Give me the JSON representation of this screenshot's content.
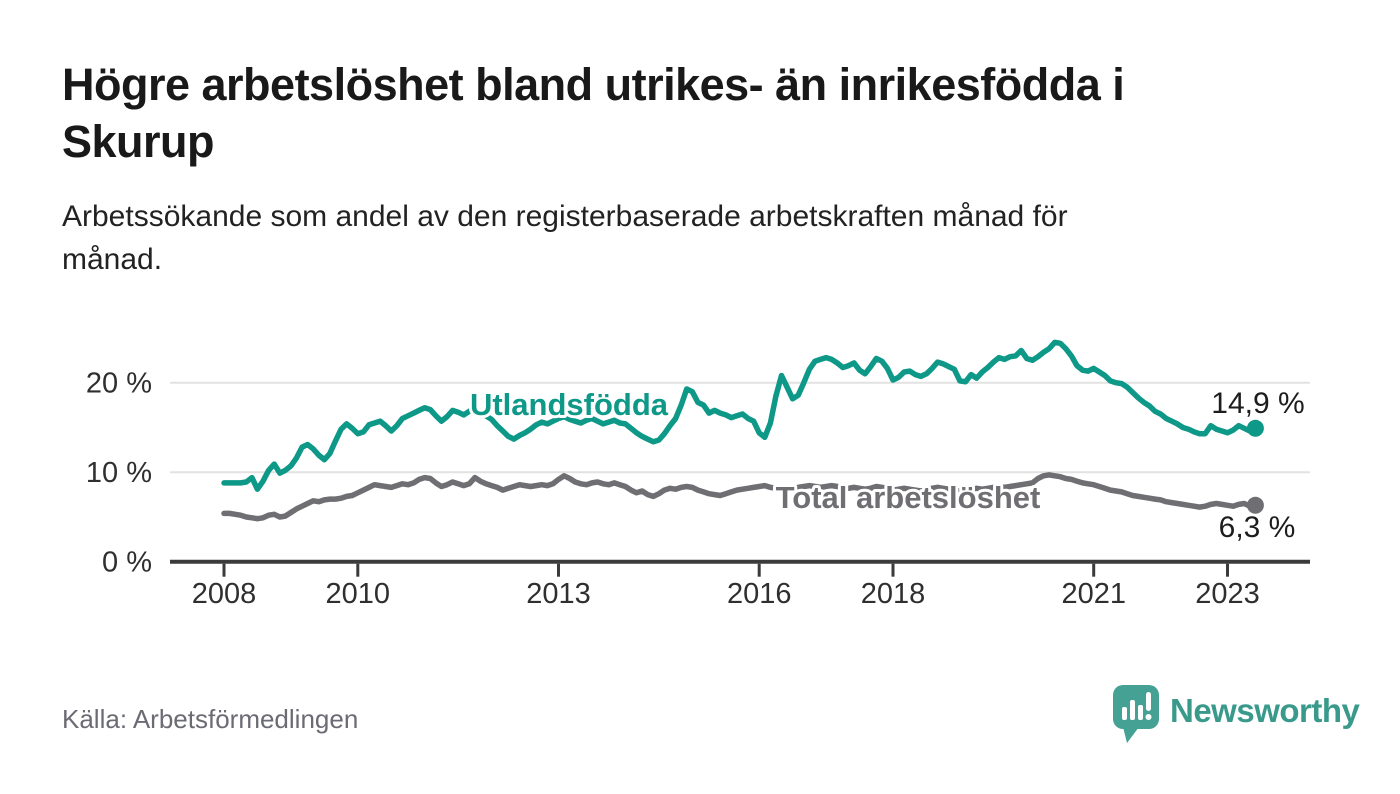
{
  "header": {
    "title": "Högre arbetslöshet bland utrikes- än inrikesfödda i Skurup",
    "subtitle": "Arbetssökande som andel av den registerbaserade arbetskraften månad för månad."
  },
  "chart_data": {
    "type": "line",
    "title": "Högre arbetslöshet bland utrikes- än inrikesfödda i Skurup",
    "x_start": "2008-01",
    "x_end": "2023-06",
    "frequency": "monthly",
    "ylim": [
      0,
      25
    ],
    "grid": "horizontal",
    "legend_position": "inline-labels",
    "y_ticks": [
      {
        "value": 0,
        "label": "0 %"
      },
      {
        "value": 10,
        "label": "10 %"
      },
      {
        "value": 20,
        "label": "20 %"
      }
    ],
    "x_ticks": [
      {
        "year": 2008,
        "label": "2008"
      },
      {
        "year": 2010,
        "label": "2010"
      },
      {
        "year": 2013,
        "label": "2013"
      },
      {
        "year": 2016,
        "label": "2016"
      },
      {
        "year": 2018,
        "label": "2018"
      },
      {
        "year": 2021,
        "label": "2021"
      },
      {
        "year": 2023,
        "label": "2023"
      }
    ],
    "series": [
      {
        "name": "Utlandsfödda",
        "color": "#0d9888",
        "end_label": "14,9 %",
        "end_value": 14.9,
        "values": [
          8.8,
          8.8,
          8.8,
          8.8,
          8.9,
          9.4,
          8.1,
          9.0,
          10.2,
          10.9,
          9.9,
          10.2,
          10.7,
          11.6,
          12.8,
          13.1,
          12.6,
          11.9,
          11.4,
          12.1,
          13.5,
          14.8,
          15.4,
          14.9,
          14.3,
          14.5,
          15.3,
          15.5,
          15.7,
          15.2,
          14.6,
          15.2,
          16.0,
          16.3,
          16.6,
          16.9,
          17.2,
          17.0,
          16.3,
          15.7,
          16.2,
          16.9,
          16.7,
          16.4,
          16.8,
          17.1,
          16.6,
          16.3,
          15.9,
          15.2,
          14.6,
          14.0,
          13.7,
          14.1,
          14.4,
          14.8,
          15.3,
          15.6,
          15.4,
          15.7,
          16.0,
          16.2,
          15.9,
          15.7,
          15.5,
          15.8,
          16.0,
          15.7,
          15.4,
          15.6,
          15.8,
          15.5,
          15.4,
          14.9,
          14.4,
          14.0,
          13.7,
          13.4,
          13.6,
          14.3,
          15.2,
          16.0,
          17.5,
          19.3,
          19.0,
          17.8,
          17.5,
          16.6,
          16.9,
          16.6,
          16.4,
          16.1,
          16.3,
          16.5,
          16.0,
          15.7,
          14.4,
          13.9,
          15.5,
          18.5,
          20.8,
          19.5,
          18.2,
          18.6,
          20.0,
          21.5,
          22.4,
          22.6,
          22.8,
          22.6,
          22.2,
          21.7,
          21.9,
          22.2,
          21.4,
          21.0,
          21.8,
          22.7,
          22.4,
          21.6,
          20.3,
          20.6,
          21.2,
          21.3,
          20.9,
          20.7,
          21.0,
          21.6,
          22.3,
          22.1,
          21.8,
          21.5,
          20.2,
          20.1,
          20.9,
          20.5,
          21.2,
          21.7,
          22.3,
          22.8,
          22.6,
          22.9,
          23.0,
          23.6,
          22.7,
          22.5,
          22.9,
          23.4,
          23.8,
          24.5,
          24.4,
          23.8,
          23.0,
          21.9,
          21.4,
          21.3,
          21.6,
          21.2,
          20.8,
          20.2,
          20.0,
          19.9,
          19.5,
          18.9,
          18.3,
          17.8,
          17.4,
          16.8,
          16.5,
          16.0,
          15.7,
          15.4,
          15.0,
          14.8,
          14.5,
          14.3,
          14.3,
          15.2,
          14.8,
          14.6,
          14.4,
          14.7,
          15.2,
          14.9,
          14.6,
          14.9
        ]
      },
      {
        "name": "Total arbetslöshet",
        "color": "#6f6f73",
        "end_label": "6,3 %",
        "end_value": 6.3,
        "values": [
          5.4,
          5.4,
          5.3,
          5.2,
          5.0,
          4.9,
          4.8,
          4.9,
          5.2,
          5.3,
          5.0,
          5.1,
          5.5,
          5.9,
          6.2,
          6.5,
          6.8,
          6.7,
          6.9,
          7.0,
          7.0,
          7.1,
          7.3,
          7.4,
          7.7,
          8.0,
          8.3,
          8.6,
          8.5,
          8.4,
          8.3,
          8.5,
          8.7,
          8.6,
          8.8,
          9.2,
          9.4,
          9.3,
          8.8,
          8.4,
          8.6,
          8.9,
          8.7,
          8.5,
          8.7,
          9.4,
          9.0,
          8.7,
          8.5,
          8.3,
          8.0,
          8.2,
          8.4,
          8.6,
          8.5,
          8.4,
          8.5,
          8.6,
          8.5,
          8.7,
          9.2,
          9.6,
          9.3,
          8.9,
          8.7,
          8.6,
          8.8,
          8.9,
          8.7,
          8.6,
          8.8,
          8.6,
          8.4,
          8.0,
          7.7,
          7.9,
          7.5,
          7.3,
          7.6,
          8.0,
          8.2,
          8.1,
          8.3,
          8.4,
          8.3,
          8.0,
          7.8,
          7.6,
          7.5,
          7.4,
          7.6,
          7.8,
          8.0,
          8.1,
          8.2,
          8.3,
          8.4,
          8.5,
          8.3,
          8.2,
          8.3,
          8.2,
          8.1,
          8.3,
          8.4,
          8.5,
          8.4,
          8.3,
          8.4,
          8.5,
          8.4,
          8.3,
          8.2,
          8.3,
          8.2,
          8.1,
          8.2,
          8.4,
          8.3,
          8.2,
          8.0,
          8.1,
          8.2,
          8.1,
          8.0,
          7.9,
          8.0,
          8.2,
          8.3,
          8.2,
          8.1,
          8.0,
          7.9,
          8.0,
          8.1,
          8.2,
          8.1,
          8.2,
          8.3,
          8.4,
          8.3,
          8.4,
          8.5,
          8.6,
          8.7,
          8.8,
          9.3,
          9.6,
          9.7,
          9.6,
          9.5,
          9.3,
          9.2,
          9.0,
          8.8,
          8.7,
          8.6,
          8.4,
          8.2,
          8.0,
          7.9,
          7.8,
          7.6,
          7.4,
          7.3,
          7.2,
          7.1,
          7.0,
          6.9,
          6.7,
          6.6,
          6.5,
          6.4,
          6.3,
          6.2,
          6.1,
          6.2,
          6.4,
          6.5,
          6.4,
          6.3,
          6.2,
          6.4,
          6.5,
          6.2,
          6.3
        ]
      }
    ]
  },
  "footer": {
    "source": "Källa: Arbetsförmedlingen",
    "brand": "Newsworthy",
    "brand_color": "#399a8c"
  }
}
